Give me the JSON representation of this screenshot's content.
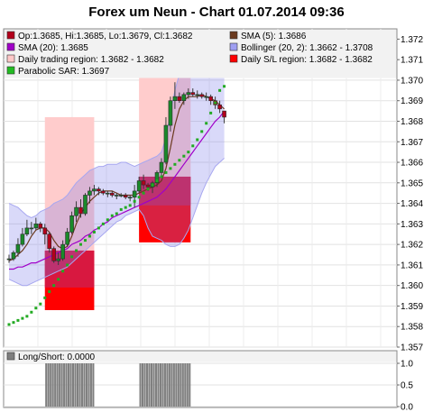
{
  "chart_data": [
    {
      "type": "candlestick",
      "title": "Forex um Neun - Chart 01.07.2014 09:36",
      "ylim": [
        1.357,
        1.3725
      ],
      "yticks": [
        "1.357",
        "1.358",
        "1.359",
        "1.360",
        "1.361",
        "1.362",
        "1.363",
        "1.364",
        "1.365",
        "1.366",
        "1.367",
        "1.368",
        "1.369",
        "1.370",
        "1.371",
        "1.372"
      ],
      "grid": true,
      "legend_position": "top",
      "legend": [
        {
          "label": "Op:1.3685, Hi:1.3685, Lo:1.3679, Cl:1.3682",
          "color": "#b3001b"
        },
        {
          "label": "SMA (5): 1.3686",
          "color": "#6b3a1f"
        },
        {
          "label": "SMA (20): 1.3685",
          "color": "#a000c8"
        },
        {
          "label": "Bollinger (20, 2): 1.3662 - 1.3708",
          "color": "#9f9ff2"
        },
        {
          "label": "Daily trading region: 1.3682 - 1.3682",
          "color": "#ffc8c8"
        },
        {
          "label": "Daily S/L region: 1.3682 - 1.3682",
          "color": "#ff0000"
        },
        {
          "label": "Parabolic SAR: 1.3697",
          "color": "#22bb22"
        }
      ],
      "candles": [
        [
          1.3613,
          1.3615,
          1.3611,
          1.3613
        ],
        [
          1.3613,
          1.3617,
          1.3612,
          1.3616
        ],
        [
          1.3616,
          1.3623,
          1.3614,
          1.362
        ],
        [
          1.362,
          1.3628,
          1.3619,
          1.3625
        ],
        [
          1.3625,
          1.3632,
          1.3624,
          1.3628
        ],
        [
          1.3628,
          1.3631,
          1.3625,
          1.3628
        ],
        [
          1.3628,
          1.3633,
          1.3627,
          1.363
        ],
        [
          1.363,
          1.3631,
          1.3626,
          1.3628
        ],
        [
          1.3628,
          1.363,
          1.362,
          1.3625
        ],
        [
          1.3625,
          1.3626,
          1.3616,
          1.3618
        ],
        [
          1.3618,
          1.3619,
          1.3611,
          1.3612
        ],
        [
          1.3612,
          1.3616,
          1.361,
          1.3613
        ],
        [
          1.3613,
          1.3622,
          1.3612,
          1.362
        ],
        [
          1.362,
          1.3628,
          1.3619,
          1.3626
        ],
        [
          1.3626,
          1.3636,
          1.3625,
          1.3634
        ],
        [
          1.3634,
          1.3641,
          1.3631,
          1.3638
        ],
        [
          1.3638,
          1.3642,
          1.3633,
          1.3635
        ],
        [
          1.3635,
          1.3645,
          1.3634,
          1.3644
        ],
        [
          1.3644,
          1.3648,
          1.364,
          1.3646
        ],
        [
          1.3646,
          1.3649,
          1.3644,
          1.3647
        ],
        [
          1.3647,
          1.3648,
          1.3644,
          1.3646
        ],
        [
          1.3646,
          1.3647,
          1.3644,
          1.3645
        ],
        [
          1.3645,
          1.3646,
          1.3643,
          1.3645
        ],
        [
          1.3645,
          1.3646,
          1.3643,
          1.3644
        ],
        [
          1.3644,
          1.3645,
          1.3642,
          1.3644
        ],
        [
          1.3644,
          1.3645,
          1.3643,
          1.3644
        ],
        [
          1.3644,
          1.3645,
          1.3642,
          1.3643
        ],
        [
          1.3643,
          1.3644,
          1.3641,
          1.3643
        ],
        [
          1.3643,
          1.3649,
          1.3638,
          1.3646
        ],
        [
          1.3646,
          1.3653,
          1.3645,
          1.3651
        ],
        [
          1.3651,
          1.3654,
          1.3647,
          1.3649
        ],
        [
          1.3649,
          1.365,
          1.3646,
          1.3648
        ],
        [
          1.3648,
          1.3651,
          1.3645,
          1.365
        ],
        [
          1.365,
          1.3656,
          1.3648,
          1.3655
        ],
        [
          1.3655,
          1.3662,
          1.3653,
          1.366
        ],
        [
          1.366,
          1.3682,
          1.3659,
          1.3678
        ],
        [
          1.3678,
          1.3692,
          1.3675,
          1.369
        ],
        [
          1.369,
          1.3699,
          1.3686,
          1.3692
        ],
        [
          1.3692,
          1.3694,
          1.3689,
          1.369
        ],
        [
          1.369,
          1.3694,
          1.3688,
          1.3693
        ],
        [
          1.3693,
          1.3696,
          1.3691,
          1.3694
        ],
        [
          1.3694,
          1.3696,
          1.3692,
          1.3693
        ],
        [
          1.3693,
          1.3695,
          1.3691,
          1.3693
        ],
        [
          1.3693,
          1.3694,
          1.3691,
          1.3692
        ],
        [
          1.3692,
          1.3694,
          1.369,
          1.3692
        ],
        [
          1.3692,
          1.3693,
          1.3688,
          1.369
        ],
        [
          1.369,
          1.3692,
          1.3686,
          1.3688
        ],
        [
          1.3688,
          1.369,
          1.3684,
          1.3686
        ],
        [
          1.3685,
          1.3685,
          1.3679,
          1.3682
        ]
      ],
      "sma5": [
        1.3612,
        1.3613,
        1.3615,
        1.3617,
        1.362,
        1.3624,
        1.3627,
        1.3628,
        1.3628,
        1.3626,
        1.3622,
        1.3619,
        1.3618,
        1.3619,
        1.3624,
        1.363,
        1.3635,
        1.3638,
        1.3641,
        1.3643,
        1.3645,
        1.3646,
        1.3646,
        1.3646,
        1.3645,
        1.3644,
        1.3644,
        1.3644,
        1.3644,
        1.3645,
        1.3646,
        1.3647,
        1.3648,
        1.3649,
        1.3651,
        1.3657,
        1.3667,
        1.3678,
        1.3686,
        1.369,
        1.3692,
        1.3692,
        1.3692,
        1.3693,
        1.3692,
        1.3691,
        1.369,
        1.3688,
        1.3686
      ],
      "sma20": [
        1.3608,
        1.3608,
        1.3609,
        1.3609,
        1.361,
        1.3611,
        1.3611,
        1.3612,
        1.3613,
        1.3614,
        1.3615,
        1.3616,
        1.3617,
        1.3618,
        1.362,
        1.3621,
        1.3622,
        1.3624,
        1.3625,
        1.3627,
        1.3628,
        1.363,
        1.3631,
        1.3633,
        1.3634,
        1.3635,
        1.3636,
        1.3637,
        1.3638,
        1.3639,
        1.364,
        1.3641,
        1.3642,
        1.3643,
        1.3645,
        1.3647,
        1.365,
        1.3653,
        1.3656,
        1.3659,
        1.3662,
        1.3665,
        1.3668,
        1.3671,
        1.3674,
        1.3677,
        1.368,
        1.3682,
        1.3685
      ],
      "bollinger_upper": [
        1.364,
        1.3639,
        1.3638,
        1.3636,
        1.3634,
        1.3633,
        1.3634,
        1.3636,
        1.3637,
        1.3638,
        1.364,
        1.3641,
        1.3642,
        1.3644,
        1.3647,
        1.365,
        1.3652,
        1.3654,
        1.3656,
        1.3657,
        1.3658,
        1.3658,
        1.3659,
        1.3659,
        1.3659,
        1.366,
        1.366,
        1.3659,
        1.3658,
        1.3659,
        1.366,
        1.3661,
        1.3662,
        1.3663,
        1.3665,
        1.3672,
        1.3684,
        1.3695,
        1.3703,
        1.3707,
        1.371,
        1.3712,
        1.3713,
        1.3713,
        1.3713,
        1.3712,
        1.3711,
        1.3709,
        1.3708
      ],
      "bollinger_lower": [
        1.3603,
        1.3602,
        1.3601,
        1.36,
        1.36,
        1.3601,
        1.3602,
        1.3603,
        1.3604,
        1.3605,
        1.3606,
        1.3607,
        1.3608,
        1.3609,
        1.3611,
        1.3613,
        1.3615,
        1.3617,
        1.3619,
        1.3621,
        1.3623,
        1.3625,
        1.3627,
        1.3629,
        1.3631,
        1.3632,
        1.3634,
        1.3635,
        1.3636,
        1.3637,
        1.3634,
        1.3628,
        1.3624,
        1.3623,
        1.3622,
        1.362,
        1.3619,
        1.3619,
        1.362,
        1.3623,
        1.3627,
        1.3633,
        1.3639,
        1.3645,
        1.365,
        1.3654,
        1.3658,
        1.366,
        1.3662
      ],
      "parabolic_sar": [
        1.3581,
        1.3582,
        1.3583,
        1.3584,
        1.3585,
        1.3587,
        1.3589,
        1.3591,
        1.3594,
        1.3597,
        1.36,
        1.3603,
        1.3607,
        1.361,
        1.3614,
        1.3617,
        1.362,
        1.3622,
        1.3624,
        1.3626,
        1.3628,
        1.363,
        1.3632,
        1.3634,
        1.3635,
        1.3637,
        1.3638,
        1.3639,
        1.3641,
        1.3643,
        1.3645,
        1.3647,
        1.3649,
        1.3651,
        1.3653,
        1.3655,
        1.3657,
        1.3659,
        1.3661,
        1.3663,
        1.3665,
        1.3668,
        1.3671,
        1.3675,
        1.3679,
        1.3684,
        1.3689,
        1.3695,
        1.3697
      ],
      "daily_regions": [
        {
          "start": 16,
          "end": 38,
          "trading_high": 1.3682,
          "trading_low": 1.3615,
          "sl_high": 1.3617,
          "sl_low": 1.3588,
          "sl_mid": 1.3599
        },
        {
          "start": 58,
          "end": 81,
          "trading_high": 1.3712,
          "trading_low": 1.3624,
          "sl_high": 1.3653,
          "sl_low": 1.3621,
          "sl_mid": 1.3639
        }
      ]
    },
    {
      "type": "bar",
      "legend": [
        {
          "label": "Long/Short: 0.0000",
          "color": "#7f7f7f"
        }
      ],
      "ylim": [
        0,
        1.0
      ],
      "yticks": [
        "0.0",
        "0.5",
        "1.0"
      ],
      "bars": [
        {
          "start": 16,
          "end": 38,
          "value": 1
        },
        {
          "start": 58,
          "end": 81,
          "value": 1
        }
      ]
    }
  ]
}
